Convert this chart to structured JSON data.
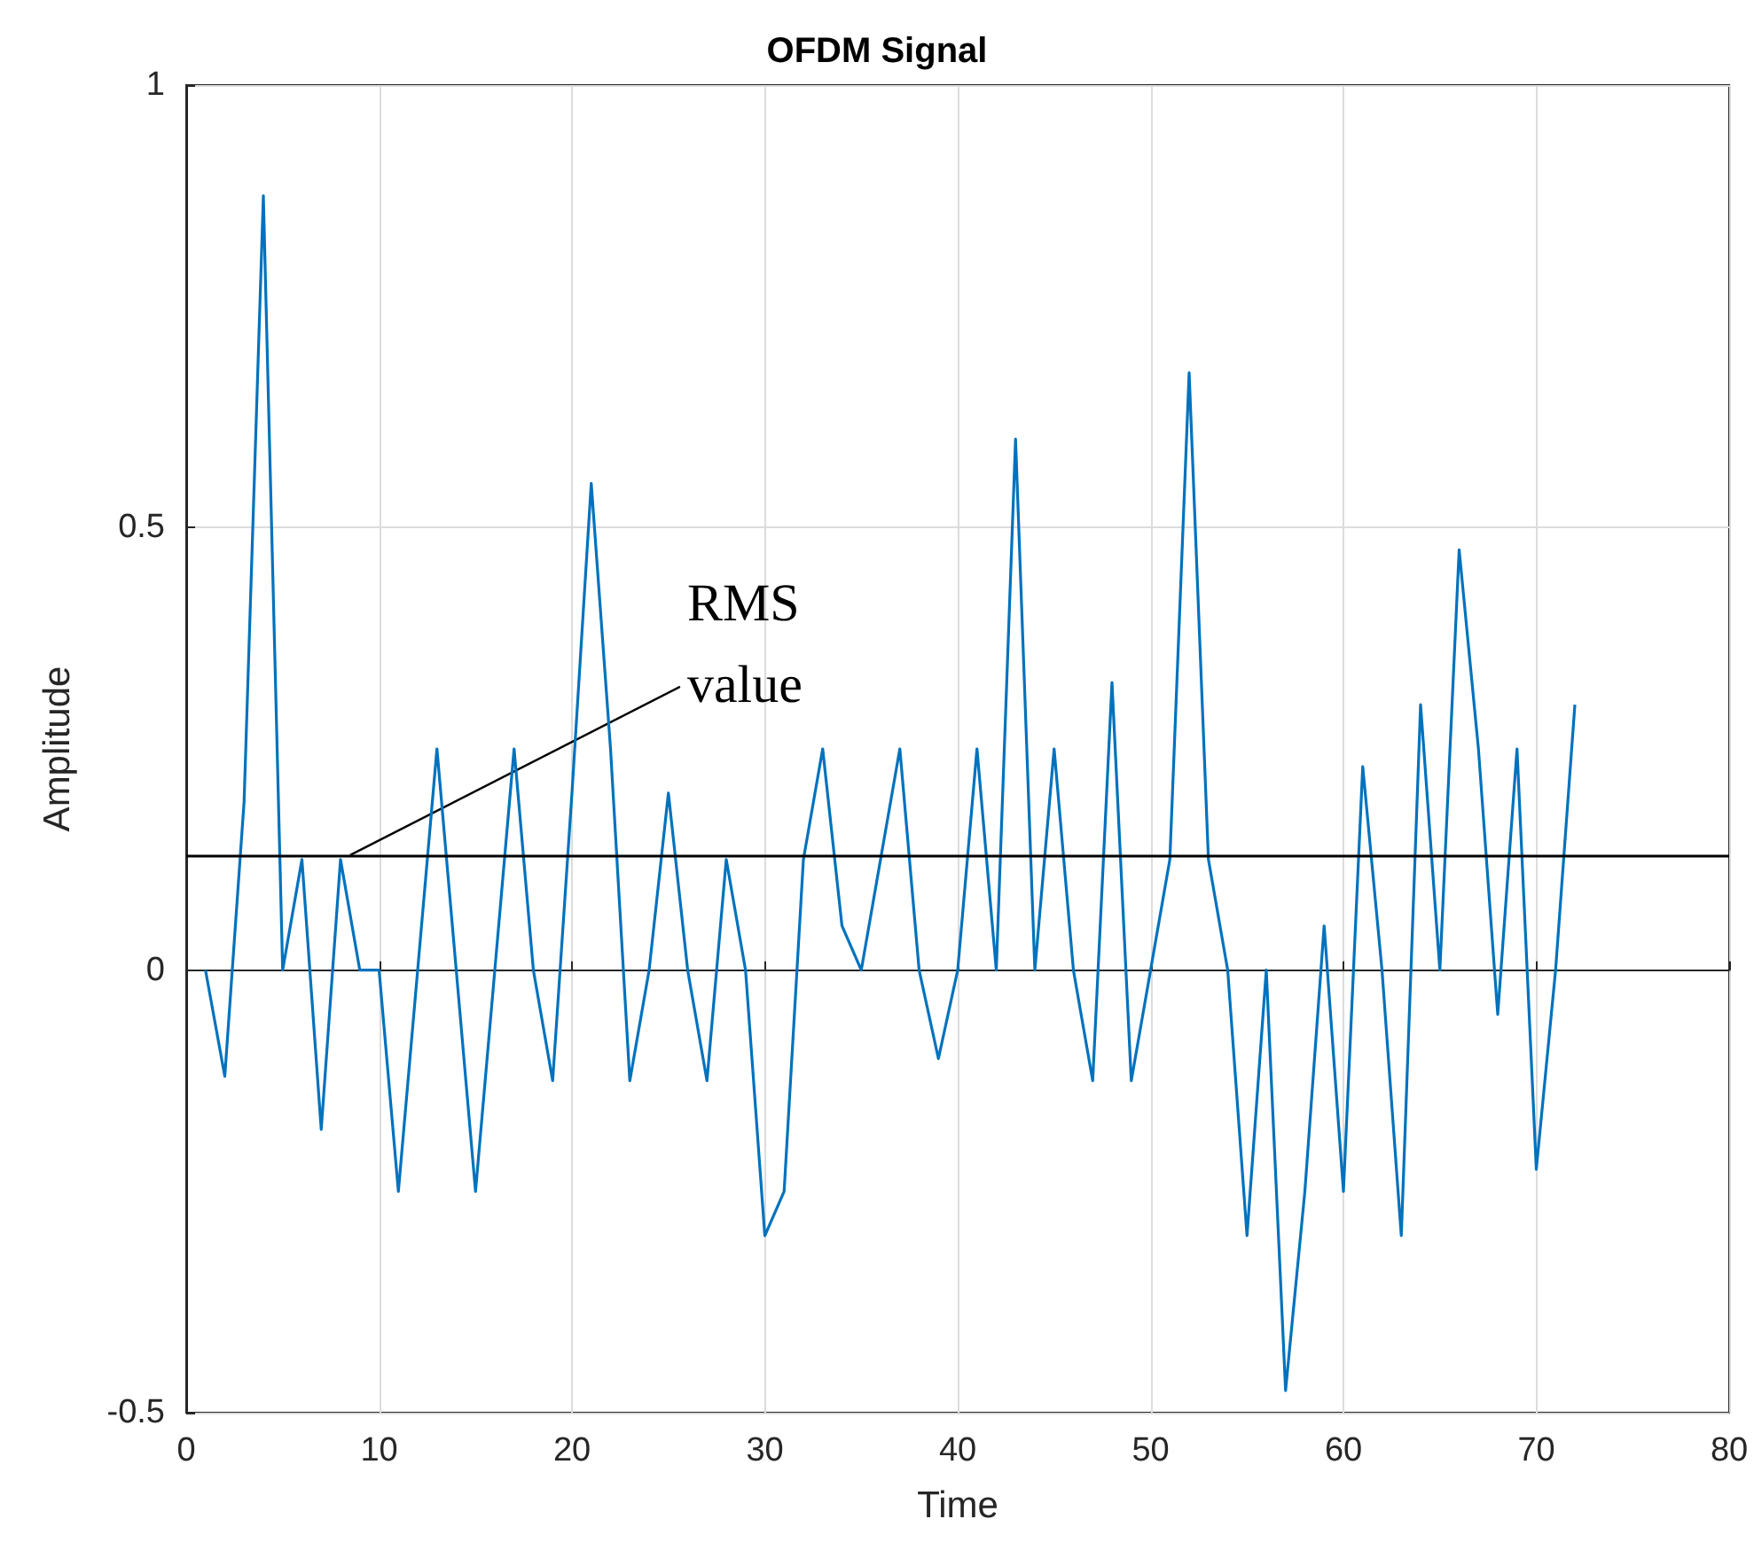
{
  "chart_data": {
    "type": "line",
    "title": "OFDM Signal",
    "xlabel": "Time",
    "ylabel": "Amplitude",
    "x": [
      1,
      2,
      3,
      4,
      5,
      6,
      7,
      8,
      9,
      10,
      11,
      12,
      13,
      14,
      15,
      16,
      17,
      18,
      19,
      20,
      21,
      22,
      23,
      24,
      25,
      26,
      27,
      28,
      29,
      30,
      31,
      32,
      33,
      34,
      35,
      36,
      37,
      38,
      39,
      40,
      41,
      42,
      43,
      44,
      45,
      46,
      47,
      48,
      49,
      50,
      51,
      52,
      53,
      54,
      55,
      56,
      57,
      58,
      59,
      60,
      61,
      62,
      63,
      64,
      65,
      66,
      67,
      68,
      69,
      70,
      71,
      72
    ],
    "series": [
      {
        "color": "#0072bd",
        "values": [
          0,
          -0.12,
          0.19,
          0.875,
          0,
          0.125,
          -0.18,
          0.125,
          0,
          0,
          -0.25,
          0,
          0.25,
          0,
          -0.25,
          0,
          0.25,
          0,
          -0.125,
          0.2,
          0.55,
          0.25,
          -0.125,
          0,
          0.2,
          0,
          -0.125,
          0.125,
          0,
          -0.3,
          -0.25,
          0.125,
          0.25,
          0.05,
          0,
          0.125,
          0.25,
          0,
          -0.1,
          0,
          0.25,
          0,
          0.6,
          0,
          0.25,
          0,
          -0.125,
          0.325,
          -0.125,
          0,
          0.125,
          0.675,
          0.125,
          0,
          -0.3,
          0,
          -0.475,
          -0.25,
          0.05,
          -0.25,
          0.23,
          0,
          -0.3,
          0.3,
          0,
          0.475,
          0.25,
          -0.05,
          0.25,
          -0.225,
          0,
          0.3
        ]
      }
    ],
    "xlim": [
      0,
      80
    ],
    "xticks": [
      0,
      10,
      20,
      30,
      40,
      50,
      60,
      70,
      80
    ],
    "ylim": [
      -0.5,
      1
    ],
    "yticks": [
      -0.5,
      0,
      0.5,
      1
    ],
    "grid": true,
    "marker": "none",
    "line_style": "solid",
    "ref_lines": [
      {
        "axis": "y",
        "value": 0.13,
        "color": "#000000"
      }
    ],
    "annotations": [
      {
        "text": "RMS value",
        "x": 8.5,
        "y": 0.13
      }
    ]
  }
}
